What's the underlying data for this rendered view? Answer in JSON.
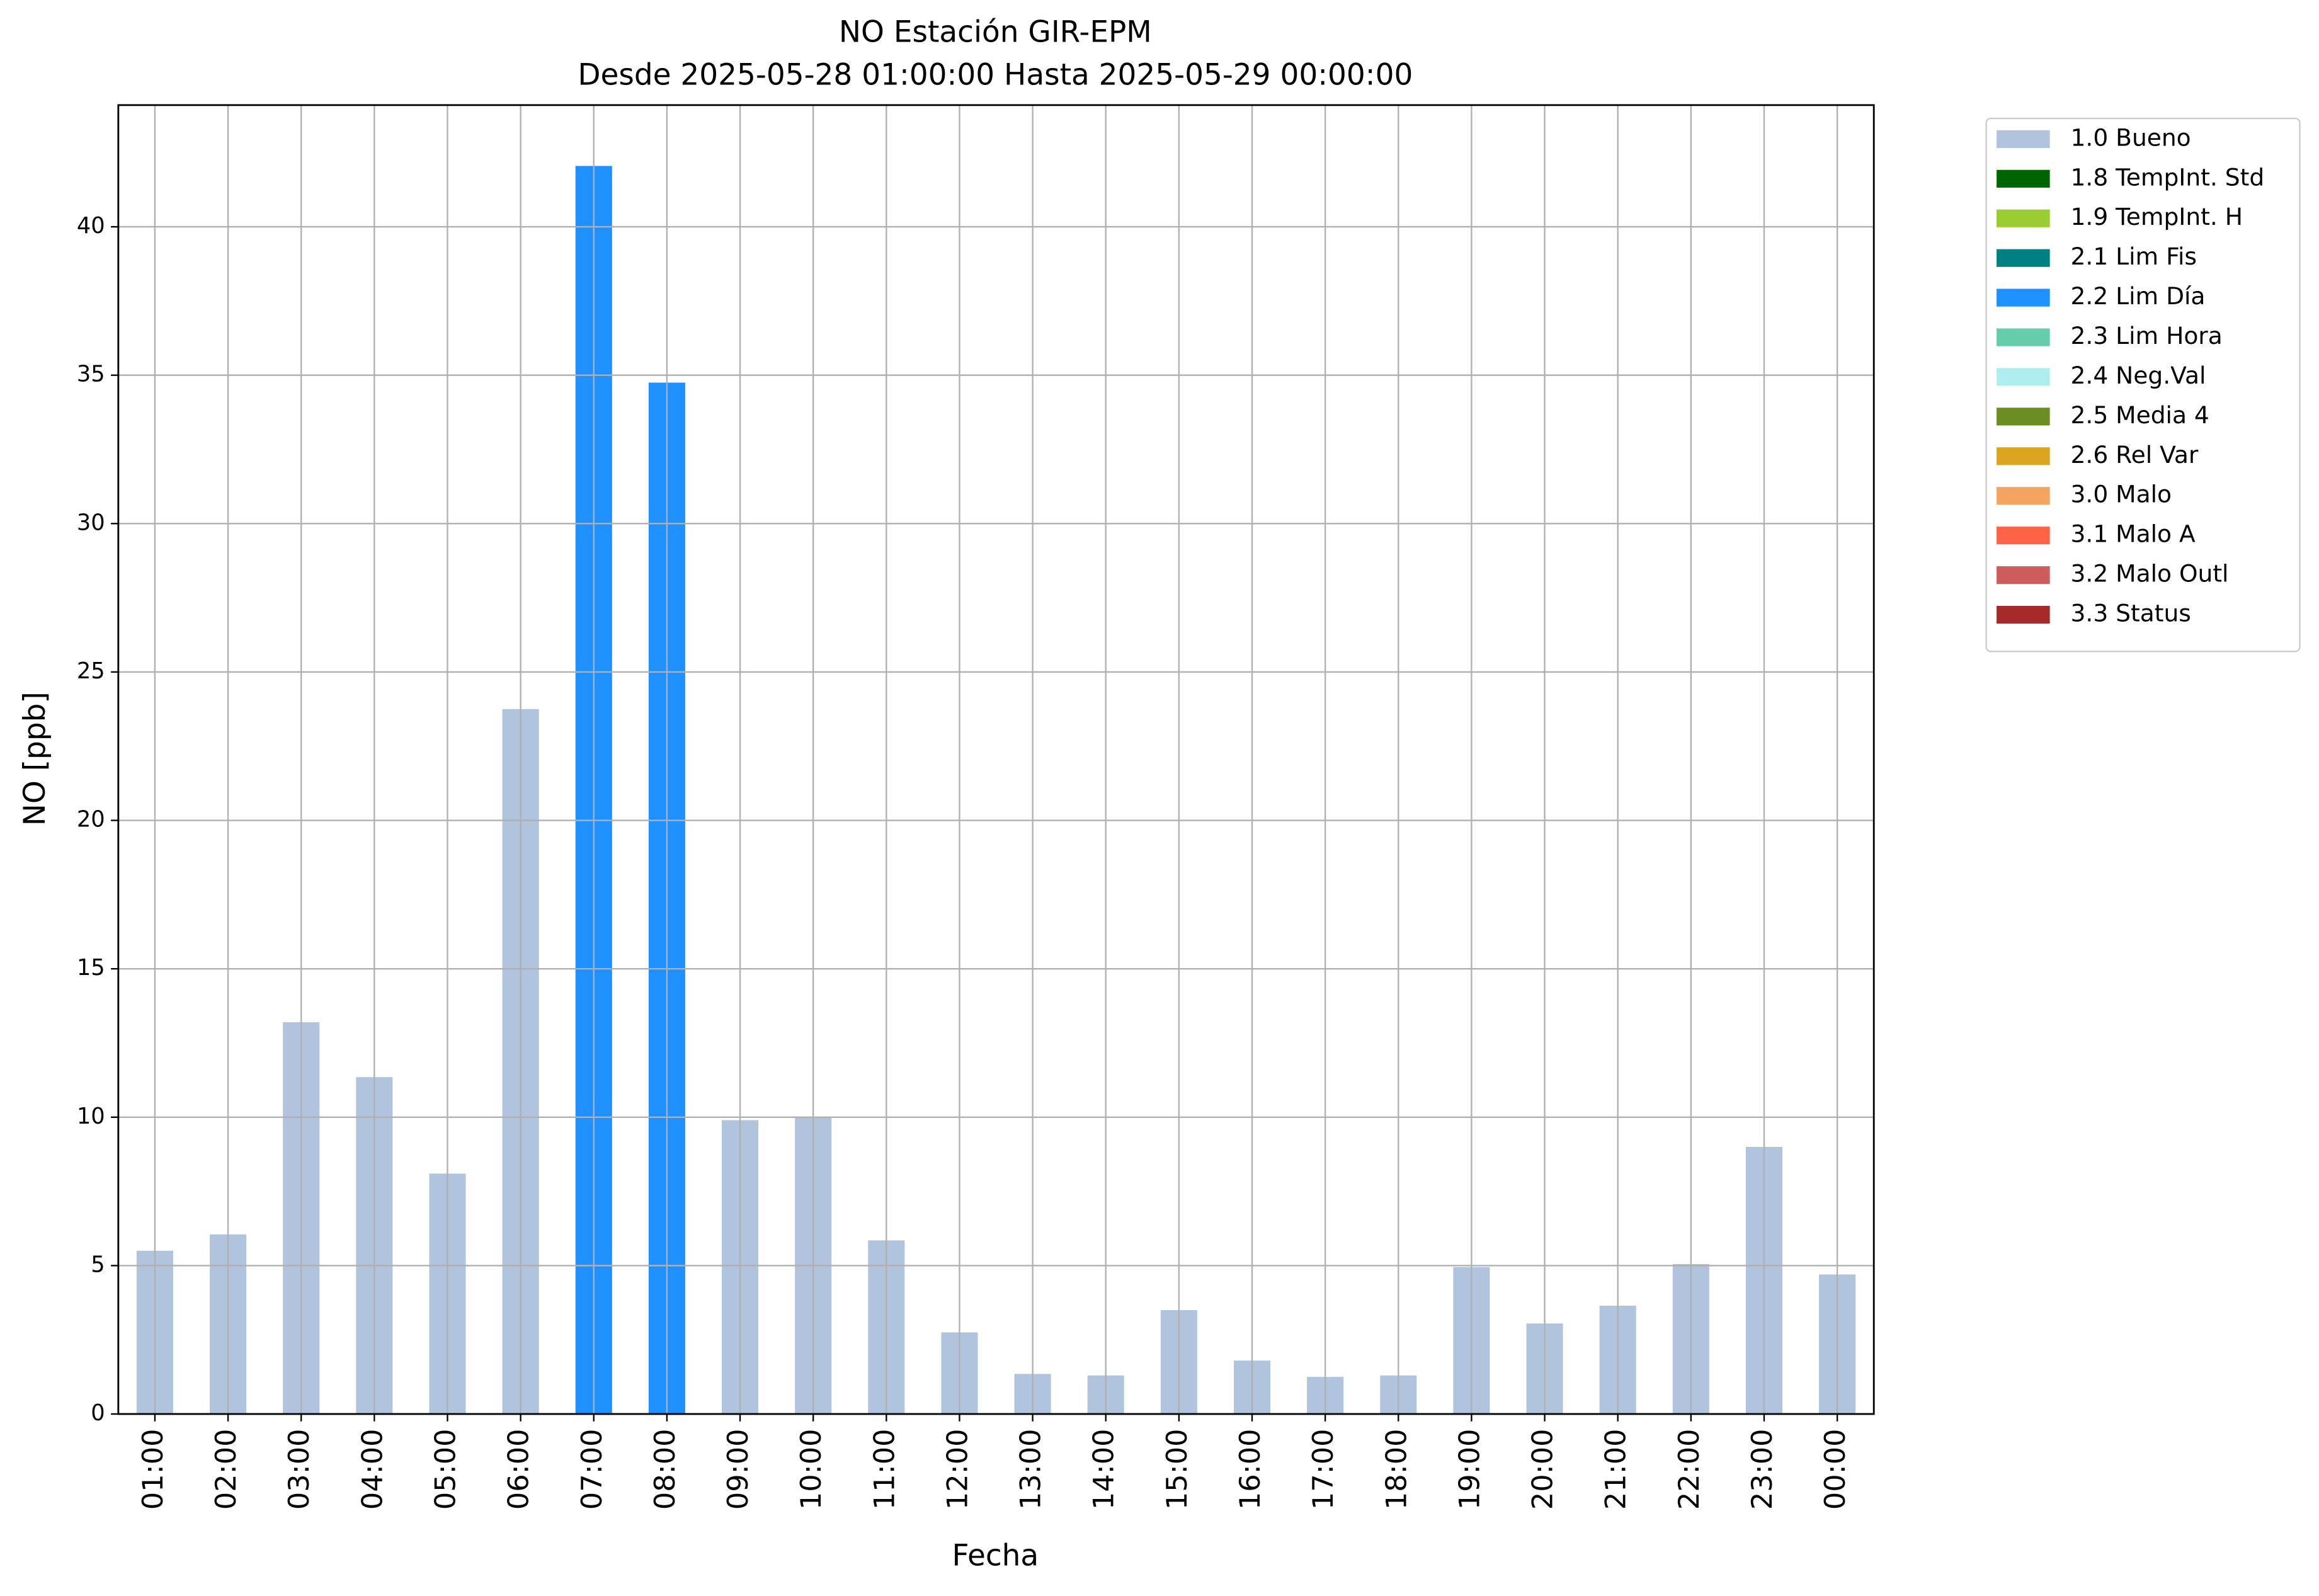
{
  "chart_data": {
    "type": "bar",
    "title": "NO Estación GIR-EPM",
    "subtitle": "Desde 2025-05-28 01:00:00 Hasta 2025-05-29 00:00:00",
    "x_label": "Fecha",
    "y_label": "NO [ppb]",
    "categories": [
      "01:00",
      "02:00",
      "03:00",
      "04:00",
      "05:00",
      "06:00",
      "07:00",
      "08:00",
      "09:00",
      "10:00",
      "11:00",
      "12:00",
      "13:00",
      "14:00",
      "15:00",
      "16:00",
      "17:00",
      "18:00",
      "19:00",
      "20:00",
      "21:00",
      "22:00",
      "23:00",
      "00:00"
    ],
    "series": [
      {
        "name": "1.0 Bueno",
        "color": "#b0c4de",
        "values": [
          5.5,
          6.05,
          13.2,
          11.35,
          8.1,
          23.75,
          null,
          null,
          9.9,
          10.0,
          5.85,
          2.75,
          1.35,
          1.3,
          3.5,
          1.8,
          1.25,
          1.3,
          4.95,
          3.05,
          3.65,
          5.05,
          9.0,
          4.7
        ]
      },
      {
        "name": "1.8 TempInt. Std",
        "color": "#006400",
        "values": [
          null,
          null,
          null,
          null,
          null,
          null,
          null,
          null,
          null,
          null,
          null,
          null,
          null,
          null,
          null,
          null,
          null,
          null,
          null,
          null,
          null,
          null,
          null,
          null
        ]
      },
      {
        "name": "1.9 TempInt. H",
        "color": "#9acd32",
        "values": [
          null,
          null,
          null,
          null,
          null,
          null,
          null,
          null,
          null,
          null,
          null,
          null,
          null,
          null,
          null,
          null,
          null,
          null,
          null,
          null,
          null,
          null,
          null,
          null
        ]
      },
      {
        "name": "2.1 Lim Fis",
        "color": "#008080",
        "values": [
          null,
          null,
          null,
          null,
          null,
          null,
          null,
          null,
          null,
          null,
          null,
          null,
          null,
          null,
          null,
          null,
          null,
          null,
          null,
          null,
          null,
          null,
          null,
          null
        ]
      },
      {
        "name": "2.2 Lim Día",
        "color": "#1e90ff",
        "values": [
          null,
          null,
          null,
          null,
          null,
          null,
          42.05,
          34.75,
          null,
          null,
          null,
          null,
          null,
          null,
          null,
          null,
          null,
          null,
          null,
          null,
          null,
          null,
          null,
          null
        ]
      },
      {
        "name": "2.3 Lim Hora",
        "color": "#66cdaa",
        "values": [
          null,
          null,
          null,
          null,
          null,
          null,
          null,
          null,
          null,
          null,
          null,
          null,
          null,
          null,
          null,
          null,
          null,
          null,
          null,
          null,
          null,
          null,
          null,
          null
        ]
      },
      {
        "name": "2.4 Neg.Val",
        "color": "#afeeee",
        "values": [
          null,
          null,
          null,
          null,
          null,
          null,
          null,
          null,
          null,
          null,
          null,
          null,
          null,
          null,
          null,
          null,
          null,
          null,
          null,
          null,
          null,
          null,
          null,
          null
        ]
      },
      {
        "name": "2.5 Media 4",
        "color": "#6b8e23",
        "values": [
          null,
          null,
          null,
          null,
          null,
          null,
          null,
          null,
          null,
          null,
          null,
          null,
          null,
          null,
          null,
          null,
          null,
          null,
          null,
          null,
          null,
          null,
          null,
          null
        ]
      },
      {
        "name": "2.6 Rel Var",
        "color": "#daa520",
        "values": [
          null,
          null,
          null,
          null,
          null,
          null,
          null,
          null,
          null,
          null,
          null,
          null,
          null,
          null,
          null,
          null,
          null,
          null,
          null,
          null,
          null,
          null,
          null,
          null
        ]
      },
      {
        "name": "3.0 Malo",
        "color": "#f4a460",
        "values": [
          null,
          null,
          null,
          null,
          null,
          null,
          null,
          null,
          null,
          null,
          null,
          null,
          null,
          null,
          null,
          null,
          null,
          null,
          null,
          null,
          null,
          null,
          null,
          null
        ]
      },
      {
        "name": "3.1 Malo A",
        "color": "#ff6347",
        "values": [
          null,
          null,
          null,
          null,
          null,
          null,
          null,
          null,
          null,
          null,
          null,
          null,
          null,
          null,
          null,
          null,
          null,
          null,
          null,
          null,
          null,
          null,
          null,
          null
        ]
      },
      {
        "name": "3.2 Malo Outl",
        "color": "#cd5c5c",
        "values": [
          null,
          null,
          null,
          null,
          null,
          null,
          null,
          null,
          null,
          null,
          null,
          null,
          null,
          null,
          null,
          null,
          null,
          null,
          null,
          null,
          null,
          null,
          null,
          null
        ]
      },
      {
        "name": "3.3 Status",
        "color": "#a52a2a",
        "values": [
          null,
          null,
          null,
          null,
          null,
          null,
          null,
          null,
          null,
          null,
          null,
          null,
          null,
          null,
          null,
          null,
          null,
          null,
          null,
          null,
          null,
          null,
          null,
          null
        ]
      }
    ],
    "ylim": [
      0,
      44.1
    ],
    "yticks": [
      0,
      5,
      10,
      15,
      20,
      25,
      30,
      35,
      40
    ],
    "grid": true,
    "legend": "outside-upper-right"
  }
}
